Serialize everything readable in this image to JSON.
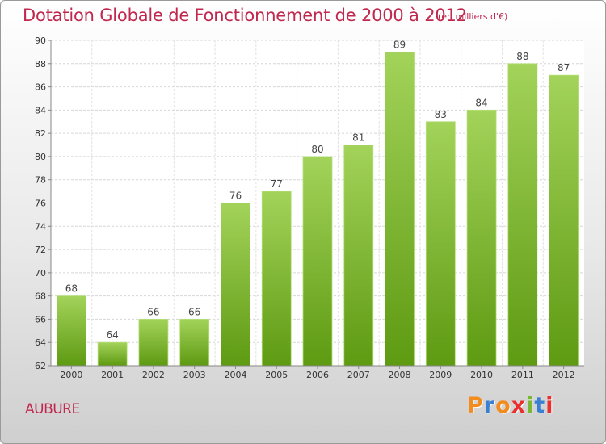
{
  "header": {
    "title": "Dotation Globale de Fonctionnement de 2000 à 2012",
    "unit": "(en milliers d'€)"
  },
  "footer": {
    "commune": "AUBURE",
    "logo_text": "Proxiti",
    "logo_colors": [
      "#f28c1e",
      "#3b7fd1",
      "#f28c1e",
      "#e8312f",
      "#78b833",
      "#3b7fd1",
      "#e8312f"
    ]
  },
  "colors": {
    "bar_top": "#a3d35a",
    "bar_bottom": "#5e9a12",
    "title": "#c0284e"
  },
  "chart_data": {
    "type": "bar",
    "title": "Dotation Globale de Fonctionnement de 2000 à 2012",
    "xlabel": "",
    "ylabel": "",
    "categories": [
      "2000",
      "2001",
      "2002",
      "2003",
      "2004",
      "2005",
      "2006",
      "2007",
      "2008",
      "2009",
      "2010",
      "2011",
      "2012"
    ],
    "values": [
      68,
      64,
      66,
      66,
      76,
      77,
      80,
      81,
      89,
      83,
      84,
      88,
      87
    ],
    "ylim": [
      62,
      90
    ],
    "yticks": [
      62,
      64,
      66,
      68,
      70,
      72,
      74,
      76,
      78,
      80,
      82,
      84,
      86,
      88,
      90
    ],
    "grid": true,
    "legend": "none"
  }
}
